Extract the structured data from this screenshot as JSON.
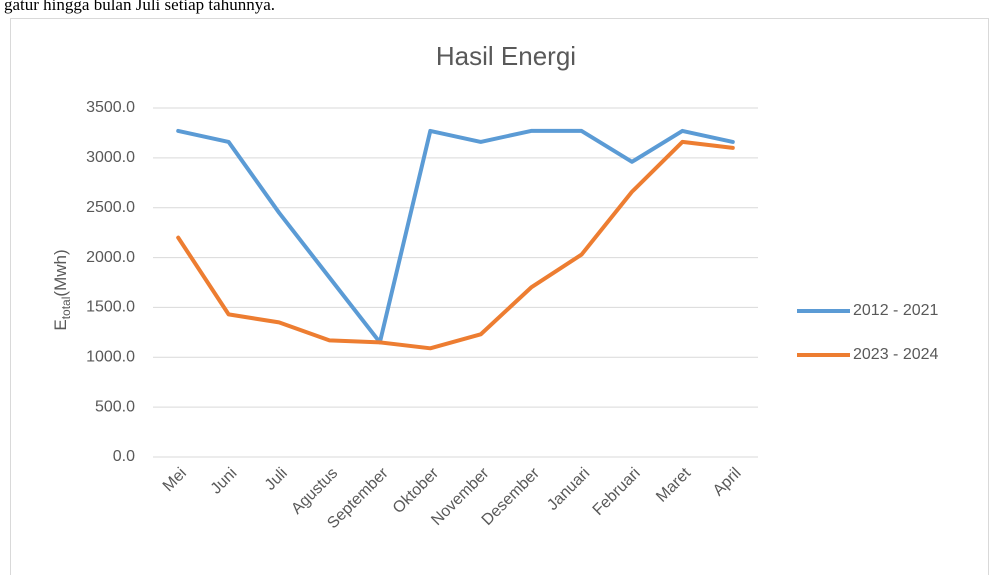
{
  "caption_above": "gatur hingga bulan Juli setiap tahunnya.",
  "chart_data": {
    "type": "line",
    "title": "Hasil Energi",
    "y_label": {
      "main": "E",
      "sub": "total",
      "unit": "(Mwh)"
    },
    "categories": [
      "Mei",
      "Juni",
      "Juli",
      "Agustus",
      "September",
      "Oktober",
      "November",
      "Desember",
      "Januari",
      "Februari",
      "Maret",
      "April"
    ],
    "series": [
      {
        "name": "2012 - 2021",
        "color": "#5b9bd5",
        "values": [
          3270,
          3160,
          2450,
          1800,
          1150,
          3270,
          3160,
          3270,
          3270,
          2960,
          3270,
          3160
        ]
      },
      {
        "name": "2023 -  2024",
        "color": "#ed7d31",
        "values": [
          2200,
          1430,
          1350,
          1170,
          1150,
          1090,
          1230,
          1700,
          2030,
          2660,
          3160,
          3100
        ]
      }
    ],
    "ylim": [
      0,
      3500
    ],
    "yticks": [
      {
        "value": 0,
        "label": "0.0"
      },
      {
        "value": 500,
        "label": "500.0"
      },
      {
        "value": 1000,
        "label": "1000.0"
      },
      {
        "value": 1500,
        "label": "1500.0"
      },
      {
        "value": 2000,
        "label": "2000.0"
      },
      {
        "value": 2500,
        "label": "2500.0"
      },
      {
        "value": 3000,
        "label": "3000.0"
      },
      {
        "value": 3500,
        "label": "3500.0"
      }
    ],
    "grid": true,
    "legend": "right"
  }
}
